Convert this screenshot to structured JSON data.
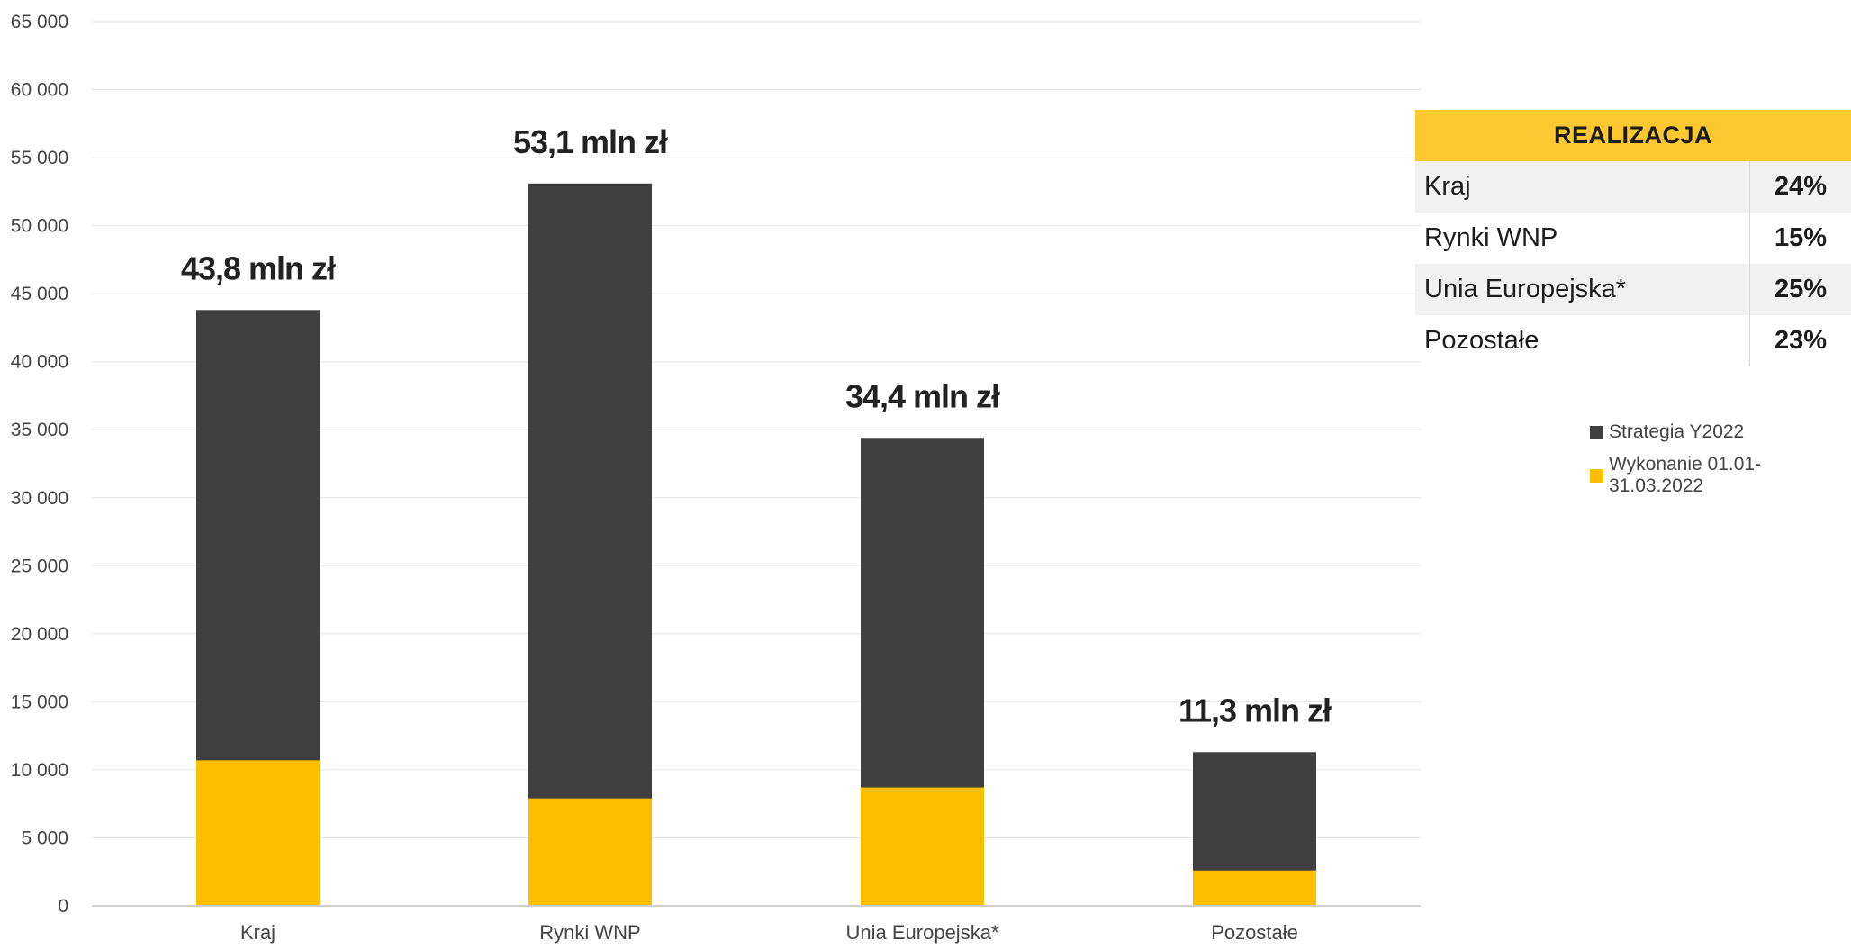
{
  "chart_data": {
    "type": "bar",
    "stacked": true,
    "categories": [
      "Kraj",
      "Rynki WNP",
      "Unia Europejska*",
      "Pozostałe"
    ],
    "series": [
      {
        "name": "Wykonanie 01.01-31.03.2022",
        "color": "#fdbe00",
        "values": [
          10700,
          7900,
          8700,
          2600
        ]
      },
      {
        "name": "Strategia Y2022",
        "color": "#3f3f3f",
        "values": [
          43800,
          53100,
          34400,
          11300
        ]
      }
    ],
    "total_labels": [
      "43,8 mln zł",
      "53,1 mln zł",
      "34,4 mln zł",
      "11,3 mln zł"
    ],
    "y_ticks": [
      0,
      5000,
      10000,
      15000,
      20000,
      25000,
      30000,
      35000,
      40000,
      45000,
      50000,
      55000,
      60000,
      65000
    ],
    "y_tick_labels": [
      "0",
      "5 000",
      "10 000",
      "15 000",
      "20 000",
      "25 000",
      "30 000",
      "35 000",
      "40 000",
      "45 000",
      "50 000",
      "55 000",
      "60 000",
      "65 000"
    ],
    "ylim": [
      0,
      65000
    ],
    "grid": true,
    "legend_position": "right",
    "title": "",
    "xlabel": "",
    "ylabel": ""
  },
  "realization_table": {
    "header": "REALIZACJA",
    "rows": [
      {
        "label": "Kraj",
        "value": "24%"
      },
      {
        "label": "Rynki WNP",
        "value": "15%"
      },
      {
        "label": "Unia Europejska*",
        "value": "25%"
      },
      {
        "label": "Pozostałe",
        "value": "23%"
      }
    ]
  },
  "legend": {
    "items": [
      {
        "label": "Strategia Y2022",
        "color": "#3f3f3f"
      },
      {
        "label": "Wykonanie 01.01-31.03.2022",
        "color": "#fdbe00"
      }
    ]
  },
  "colors": {
    "strategy": "#3f3f3f",
    "execution": "#fdbe00",
    "table_header": "#fdc82f",
    "row_shade": "#f1f1f1"
  }
}
